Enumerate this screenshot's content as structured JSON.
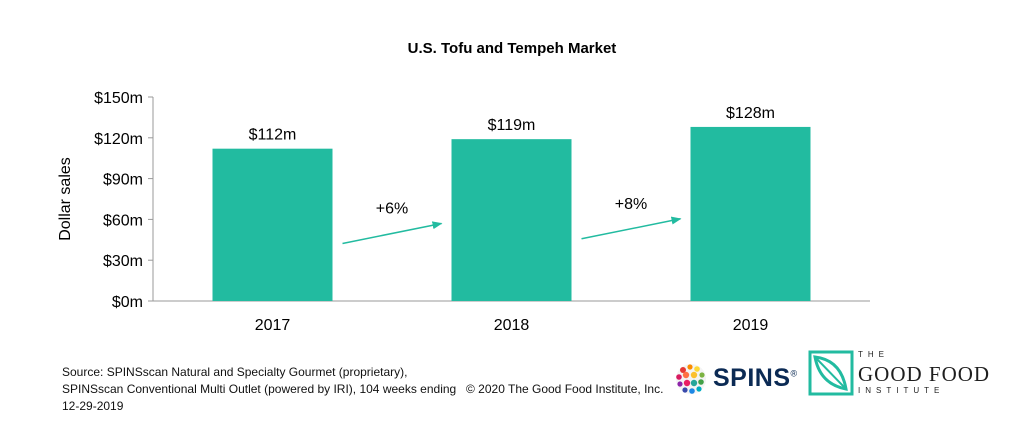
{
  "chart_data": {
    "type": "bar",
    "title": "U.S. Tofu and Tempeh Market",
    "xlabel": "",
    "ylabel": "Dollar sales",
    "categories": [
      "2017",
      "2018",
      "2019"
    ],
    "values": [
      112,
      119,
      128
    ],
    "data_labels": [
      "$112m",
      "$119m",
      "$128m"
    ],
    "ylim": [
      0,
      150
    ],
    "yticks": [
      0,
      30,
      60,
      90,
      120,
      150
    ],
    "ytick_labels": [
      "$0m",
      "$30m",
      "$60m",
      "$90m",
      "$120m",
      "$150m"
    ],
    "grid": false,
    "bar_color": "#22bba0",
    "arrow_color": "#22bba0",
    "growth_annotations": [
      {
        "from": "2017",
        "to": "2018",
        "label": "+6%"
      },
      {
        "from": "2018",
        "to": "2019",
        "label": "+8%"
      }
    ]
  },
  "footer": {
    "source": "Source: SPINSscan Natural and Specialty Gourmet (proprietary), SPINSscan Conventional Multi Outlet (powered by IRI), 104 weeks ending 12-29-2019",
    "copyright": "© 2020 The Good Food Institute, Inc."
  },
  "logos": {
    "spins": {
      "word": "SPINS",
      "reg": "®",
      "color": "#0b2a54"
    },
    "gfi": {
      "the": "THE",
      "main": "GOOD FOOD",
      "institute": "INSTITUTE",
      "color": "#22bba0"
    }
  }
}
